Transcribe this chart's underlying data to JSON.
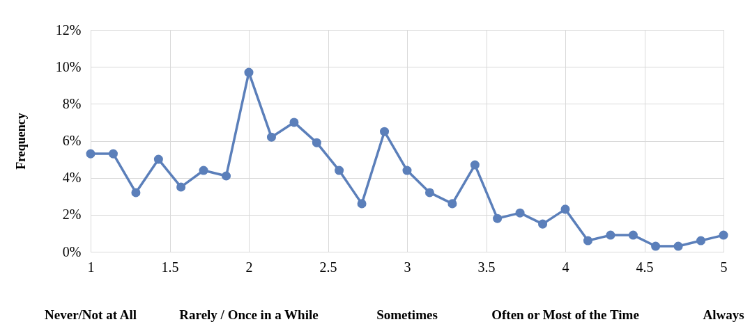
{
  "chart_data": {
    "type": "line",
    "ylabel": "Frequency",
    "x": [
      1,
      1.143,
      1.286,
      1.429,
      1.571,
      1.714,
      1.857,
      2,
      2.143,
      2.286,
      2.429,
      2.571,
      2.714,
      2.857,
      3,
      3.143,
      3.286,
      3.429,
      3.571,
      3.714,
      3.857,
      4,
      4.143,
      4.286,
      4.429,
      4.571,
      4.714,
      4.857,
      5
    ],
    "series": [
      {
        "color": "#5b7fba",
        "values": [
          5.3,
          5.3,
          3.2,
          5.0,
          3.5,
          4.4,
          4.1,
          9.7,
          6.2,
          7.0,
          5.9,
          4.4,
          2.6,
          6.5,
          4.4,
          3.2,
          2.6,
          4.7,
          1.8,
          2.1,
          1.5,
          2.3,
          0.6,
          0.9,
          0.9,
          0.3,
          0.3,
          0.6,
          0.9
        ]
      }
    ],
    "xlim": [
      1,
      5
    ],
    "xticks": [
      1,
      1.5,
      2,
      2.5,
      3,
      3.5,
      4,
      4.5,
      5
    ],
    "ylim": [
      0,
      12
    ],
    "yticks": [
      {
        "value": 0,
        "label": "0%"
      },
      {
        "value": 2,
        "label": "2%"
      },
      {
        "value": 4,
        "label": "4%"
      },
      {
        "value": 6,
        "label": "6%"
      },
      {
        "value": 8,
        "label": "8%"
      },
      {
        "value": 10,
        "label": "10%"
      },
      {
        "value": 12,
        "label": "12%"
      }
    ],
    "annotations": [
      "Never/Not at All",
      "Rarely / Once in a While",
      "Sometimes",
      "Often or Most of the Time",
      "Always"
    ],
    "grid": true,
    "marker": "circle",
    "line_style": "solid"
  }
}
